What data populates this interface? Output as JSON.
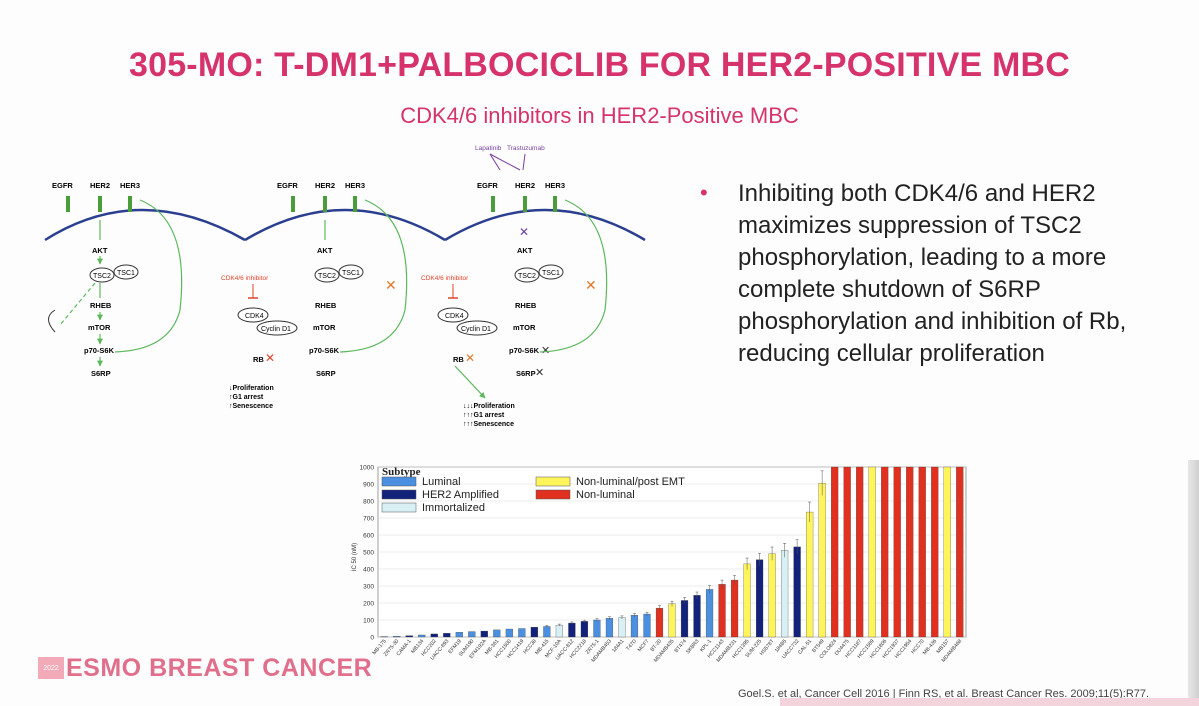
{
  "slide": {
    "title": "305-MO: T-DM1+PALBOCICLIB FOR HER2-POSITIVE MBC",
    "subtitle": "CDK4/6 inhibitors in HER2-Positive MBC",
    "bullet": "Inhibiting both CDK4/6 and HER2 maximizes suppression of TSC2 phosphorylation, leading to a more complete shutdown of S6RP phosphorylation and inhibition of Rb, reducing cellular proliferation",
    "footer_logo": "ESMO BREAST CANCER",
    "logo_badge": "2022",
    "citation": "Goel.S. et al, Cancer Cell 2016 | Finn RS, et al. Breast Cancer Res. 2009;11(5):R77."
  },
  "diagram": {
    "receptors": [
      "EGFR",
      "HER2",
      "HER3"
    ],
    "nodes": [
      "AKT",
      "TSC2",
      "TSC1",
      "RHEB",
      "mTOR",
      "p70-S6K",
      "S6RP",
      "CDK4",
      "Cyclin D1",
      "RB"
    ],
    "cdk_inhibitor": "CDK4/6 inhibitor",
    "drugs": [
      "Lapatinib",
      "Trastuzumab"
    ],
    "outcome_2": [
      "↓Proliferation",
      "↑G1 arrest",
      "↑Senescence"
    ],
    "outcome_3": [
      "↓↓↓Proliferation",
      "↑↑↑G1 arrest",
      "↑↑↑Senescence"
    ]
  },
  "colors": {
    "accent": "#d6336c",
    "membrane": "#2a3f8f",
    "pathway": "#5cb85c",
    "inhibitor": "#e0442c",
    "luminal": "#4a8fe0",
    "her2": "#12217a",
    "immortalized": "#d8f0f4",
    "nonlum_post_emt": "#fff45a",
    "nonluminal": "#e03020"
  },
  "chart_data": {
    "type": "bar",
    "ylabel": "IC 50 (nM)",
    "ylim": [
      0,
      1000
    ],
    "yticks": [
      0,
      100,
      200,
      300,
      400,
      500,
      600,
      700,
      800,
      900,
      1000
    ],
    "legend_title": "Subtype",
    "legend": [
      {
        "label": "Luminal",
        "key": "L"
      },
      {
        "label": "HER2 Amplified",
        "key": "H"
      },
      {
        "label": "Immortalized",
        "key": "I"
      },
      {
        "label": "Non-luminal/post EMT",
        "key": "P"
      },
      {
        "label": "Non-luminal",
        "key": "N"
      }
    ],
    "categories": [
      "MB-175",
      "ZR75-30",
      "CAMA-1",
      "MB134",
      "HCC202",
      "UACC-893",
      "EFM19",
      "SUM190",
      "EFM192A",
      "MB-361",
      "HCC1500",
      "HCC1419",
      "HCC38",
      "MB-415",
      "MCF-10A",
      "UACC-812",
      "HCC2218",
      "ZR75-1",
      "MDAMB453",
      "184A1",
      "T47D",
      "MCF7",
      "BT-20",
      "MDAMB435",
      "BT474",
      "SKBR3",
      "KPL-1",
      "HCC1143",
      "MDAMB231",
      "HCC1395",
      "SUM-225",
      "HS578T",
      "184B5",
      "UACC732",
      "CAL-51",
      "BT549",
      "COLO824",
      "DU4475",
      "HCC1187",
      "HCC1569",
      "HCC1806",
      "HCC1937",
      "HCC1954",
      "HCC70",
      "MB-436",
      "MB157",
      "MDAMB468"
    ],
    "subtypes": [
      "L",
      "L",
      "H",
      "L",
      "H",
      "H",
      "L",
      "L",
      "H",
      "L",
      "L",
      "L",
      "H",
      "L",
      "I",
      "H",
      "H",
      "L",
      "L",
      "I",
      "L",
      "L",
      "N",
      "P",
      "H",
      "H",
      "L",
      "N",
      "N",
      "P",
      "H",
      "P",
      "I",
      "H",
      "P",
      "P",
      "N",
      "N",
      "N",
      "P",
      "N",
      "N",
      "N",
      "N",
      "N",
      "P",
      "N"
    ],
    "values": [
      3,
      5,
      8,
      12,
      18,
      22,
      28,
      32,
      35,
      42,
      47,
      50,
      58,
      62,
      70,
      82,
      92,
      100,
      110,
      115,
      128,
      135,
      170,
      195,
      215,
      245,
      280,
      310,
      335,
      430,
      455,
      490,
      510,
      530,
      735,
      905,
      1000,
      1000,
      1000,
      1000,
      1000,
      1000,
      1000,
      1000,
      1000,
      1000,
      1000
    ]
  }
}
